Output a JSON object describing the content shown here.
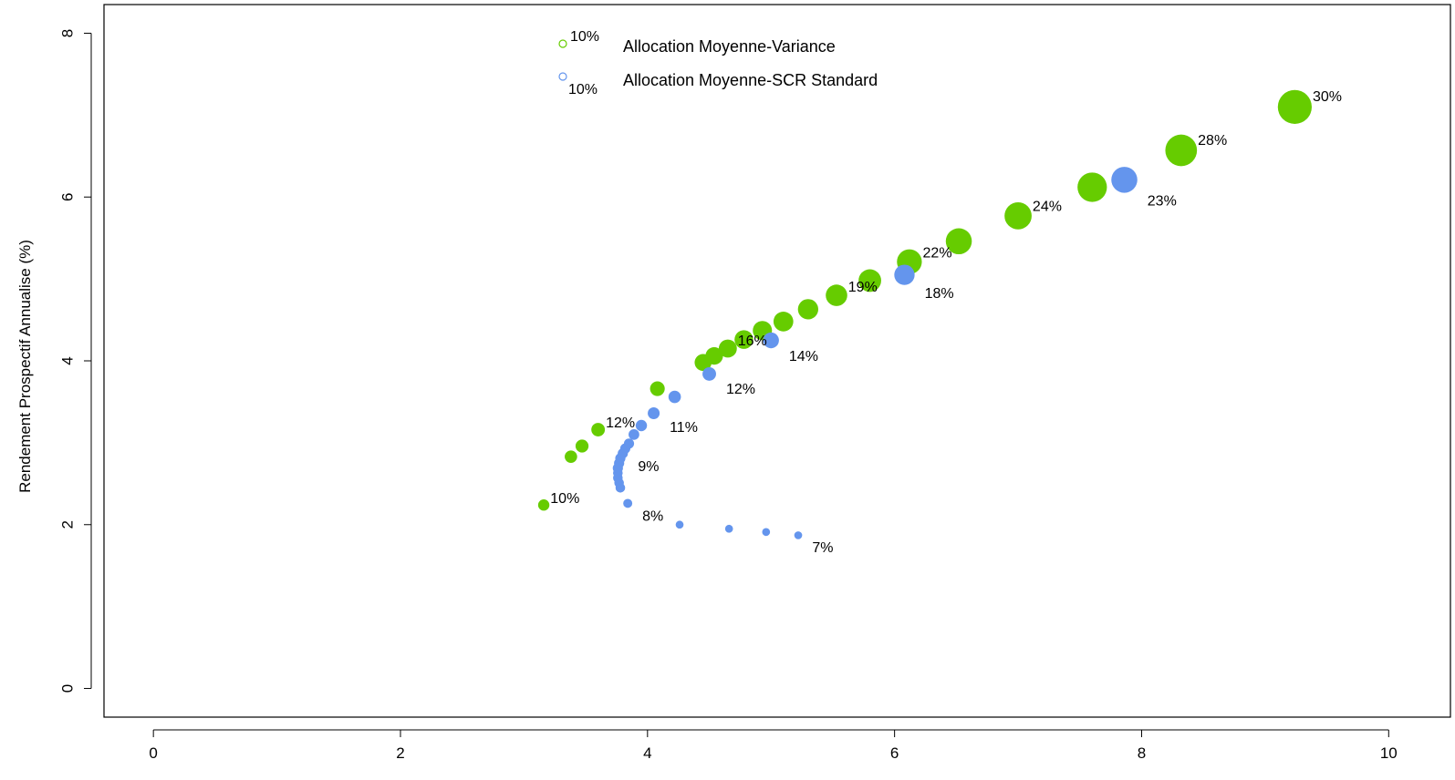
{
  "chart_data": {
    "type": "scatter",
    "title": "",
    "xlabel": "",
    "ylabel": "Rendement Prospectif Annualise (%)",
    "xlim": [
      -0.4,
      10.5
    ],
    "ylim": [
      -0.35,
      8.35
    ],
    "x_ticks": [
      0,
      2,
      4,
      6,
      8,
      10
    ],
    "y_ticks": [
      0,
      2,
      4,
      6,
      8
    ],
    "x_tick_labels": [
      "0",
      "2",
      "4",
      "6",
      "8",
      "10"
    ],
    "y_tick_labels": [
      "0",
      "2",
      "4",
      "6",
      "8"
    ],
    "grid": false,
    "legend_position": "top-center",
    "legend": {
      "entries": [
        {
          "label": "Allocation Moyenne-Variance",
          "size_label": "10%",
          "color": "#66cc00"
        },
        {
          "label": "Allocation Moyenne-SCR Standard",
          "size_label": "10%",
          "color": "#6495ed"
        }
      ]
    },
    "series": [
      {
        "name": "Allocation Moyenne-Variance",
        "color": "#66cc00",
        "points": [
          {
            "x": 3.16,
            "y": 2.24,
            "size": 10,
            "label": "10%"
          },
          {
            "x": 3.38,
            "y": 2.83,
            "size": 11
          },
          {
            "x": 3.47,
            "y": 2.96,
            "size": 11.5
          },
          {
            "x": 3.6,
            "y": 3.16,
            "size": 12,
            "label": "12%"
          },
          {
            "x": 4.08,
            "y": 3.66,
            "size": 13
          },
          {
            "x": 4.45,
            "y": 3.98,
            "size": 15
          },
          {
            "x": 4.54,
            "y": 4.06,
            "size": 15.5
          },
          {
            "x": 4.65,
            "y": 4.15,
            "size": 16,
            "label": "16%"
          },
          {
            "x": 4.78,
            "y": 4.26,
            "size": 16.5
          },
          {
            "x": 4.93,
            "y": 4.37,
            "size": 17
          },
          {
            "x": 5.1,
            "y": 4.48,
            "size": 17.5
          },
          {
            "x": 5.3,
            "y": 4.63,
            "size": 18
          },
          {
            "x": 5.53,
            "y": 4.8,
            "size": 19,
            "label": "19%"
          },
          {
            "x": 5.8,
            "y": 4.98,
            "size": 20
          },
          {
            "x": 6.12,
            "y": 5.21,
            "size": 22,
            "label": "22%"
          },
          {
            "x": 6.52,
            "y": 5.46,
            "size": 23
          },
          {
            "x": 7.0,
            "y": 5.77,
            "size": 24,
            "label": "24%"
          },
          {
            "x": 7.6,
            "y": 6.12,
            "size": 26
          },
          {
            "x": 8.32,
            "y": 6.57,
            "size": 28,
            "label": "28%"
          },
          {
            "x": 9.24,
            "y": 7.1,
            "size": 30,
            "label": "30%"
          }
        ]
      },
      {
        "name": "Allocation Moyenne-SCR Standard",
        "color": "#6495ed",
        "points": [
          {
            "x": 5.22,
            "y": 1.87,
            "size": 7,
            "label": "7%"
          },
          {
            "x": 4.96,
            "y": 1.91,
            "size": 7
          },
          {
            "x": 4.66,
            "y": 1.95,
            "size": 7
          },
          {
            "x": 4.26,
            "y": 2.0,
            "size": 7
          },
          {
            "x": 3.84,
            "y": 2.26,
            "size": 8,
            "label": "8%"
          },
          {
            "x": 3.78,
            "y": 2.45,
            "size": 8.5
          },
          {
            "x": 3.77,
            "y": 2.51,
            "size": 8.5
          },
          {
            "x": 3.76,
            "y": 2.57,
            "size": 8.5
          },
          {
            "x": 3.76,
            "y": 2.63,
            "size": 8.5
          },
          {
            "x": 3.76,
            "y": 2.69,
            "size": 9
          },
          {
            "x": 3.77,
            "y": 2.75,
            "size": 9
          },
          {
            "x": 3.78,
            "y": 2.81,
            "size": 9
          },
          {
            "x": 3.8,
            "y": 2.87,
            "size": 9,
            "label": "9%"
          },
          {
            "x": 3.82,
            "y": 2.93,
            "size": 9
          },
          {
            "x": 3.85,
            "y": 2.99,
            "size": 9
          },
          {
            "x": 3.89,
            "y": 3.1,
            "size": 9.5
          },
          {
            "x": 3.95,
            "y": 3.21,
            "size": 10
          },
          {
            "x": 4.05,
            "y": 3.36,
            "size": 10.5,
            "label": "11%"
          },
          {
            "x": 4.22,
            "y": 3.56,
            "size": 11
          },
          {
            "x": 4.5,
            "y": 3.84,
            "size": 12,
            "label": "12%"
          },
          {
            "x": 5.0,
            "y": 4.25,
            "size": 14,
            "label": "14%"
          },
          {
            "x": 6.08,
            "y": 5.05,
            "size": 18,
            "label": "18%"
          },
          {
            "x": 7.86,
            "y": 6.21,
            "size": 23,
            "label": "23%"
          }
        ]
      }
    ]
  }
}
